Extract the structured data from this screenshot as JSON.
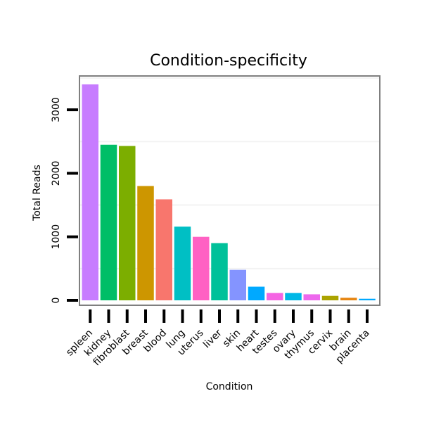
{
  "chart_data": {
    "type": "bar",
    "title": "Condition-specificity",
    "xlabel": "Condition",
    "ylabel": "Total Reads",
    "ylim": [
      0,
      3600
    ],
    "yticks": [
      0,
      1000,
      2000,
      3000
    ],
    "grid": true,
    "categories": [
      "spleen",
      "kidney",
      "fibroblast",
      "breast",
      "blood",
      "lung",
      "uterus",
      "liver",
      "skin",
      "heart",
      "testes",
      "ovary",
      "thymus",
      "cervix",
      "brain",
      "placenta"
    ],
    "values": [
      3400,
      2450,
      2430,
      1800,
      1590,
      1160,
      1000,
      900,
      480,
      215,
      115,
      115,
      95,
      70,
      40,
      25
    ],
    "colors": [
      "#C77CFF",
      "#00BE67",
      "#7CAE00",
      "#CD9600",
      "#F8766D",
      "#00BFC4",
      "#FF61C3",
      "#00C19A",
      "#8494FF",
      "#00A9FF",
      "#F564E3",
      "#00B8E7",
      "#ED68ED",
      "#ABA300",
      "#E68613",
      "#00A9FF"
    ]
  }
}
